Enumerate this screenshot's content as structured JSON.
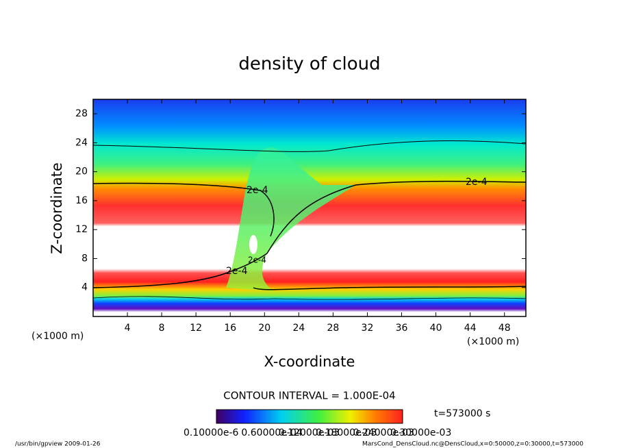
{
  "chart_data": {
    "type": "contour",
    "title": "density of cloud",
    "xlabel": "X-coordinate",
    "ylabel": "Z-coordinate",
    "x_unit": "(×1000 m)",
    "y_unit": "(×1000 m)",
    "xlim": [
      0,
      50.5
    ],
    "ylim": [
      0,
      30
    ],
    "xticks": [
      4,
      8,
      12,
      16,
      20,
      24,
      28,
      32,
      36,
      40,
      44,
      48
    ],
    "yticks": [
      4,
      8,
      12,
      16,
      20,
      24,
      28
    ],
    "contour_labels": [
      "2e-4",
      "2e-4",
      "2e-4",
      "2e-4"
    ],
    "contour_interval": "CONTOUR INTERVAL = 1.000E-04",
    "time_label": "t=573000 s",
    "colorbar_labels": [
      "0.10000e-6",
      "0.60000e-04",
      "0.12000e-03",
      "0.18000e-03",
      "0.24000e-03",
      "0.30000e-03"
    ],
    "footer_left": "/usr/bin/gpview  2009-01-26",
    "footer_right": "MarsCond_DensCloud.nc@DensCloud,x=0:50000,z=0:30000,t=573000"
  }
}
